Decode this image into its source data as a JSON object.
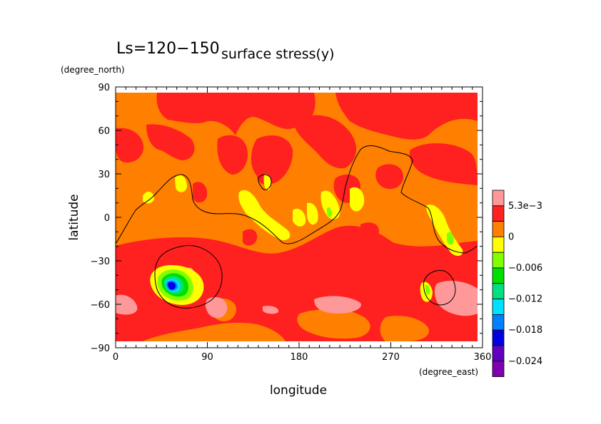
{
  "chart_data": {
    "type": "heatmap",
    "title": "surface stress(y)",
    "subtitle": "Ls=120−150",
    "xlabel": "longitude",
    "ylabel": "latitude",
    "xunit": "(degree_east)",
    "yunit": "(degree_north)",
    "xlim": [
      0,
      360
    ],
    "ylim": [
      -90,
      90
    ],
    "xticks": [
      0,
      90,
      180,
      270,
      360
    ],
    "xtick_labels": [
      "0",
      "90",
      "180",
      "270",
      "360"
    ],
    "yticks": [
      90,
      60,
      30,
      0,
      -30,
      -60,
      -90
    ],
    "ytick_labels": [
      "90",
      "60",
      "30",
      "0",
      "−30",
      "−60",
      "−90"
    ],
    "grid": false,
    "colorbar": {
      "labels": [
        "5.3e−3",
        "0",
        "−0.006",
        "−0.012",
        "−0.018",
        "−0.024"
      ],
      "levels": [
        0.0053,
        0,
        -0.003,
        -0.006,
        -0.009,
        -0.012,
        -0.015,
        -0.018,
        -0.021,
        -0.024,
        -0.027
      ],
      "colors": [
        "#ff9999",
        "#ff2020",
        "#ff7f00",
        "#ffff00",
        "#80ff00",
        "#00e000",
        "#00e080",
        "#00e0ff",
        "#0080ff",
        "#0000e0",
        "#6000c0",
        "#8000b0"
      ]
    },
    "background_color": "#ff7f00"
  }
}
